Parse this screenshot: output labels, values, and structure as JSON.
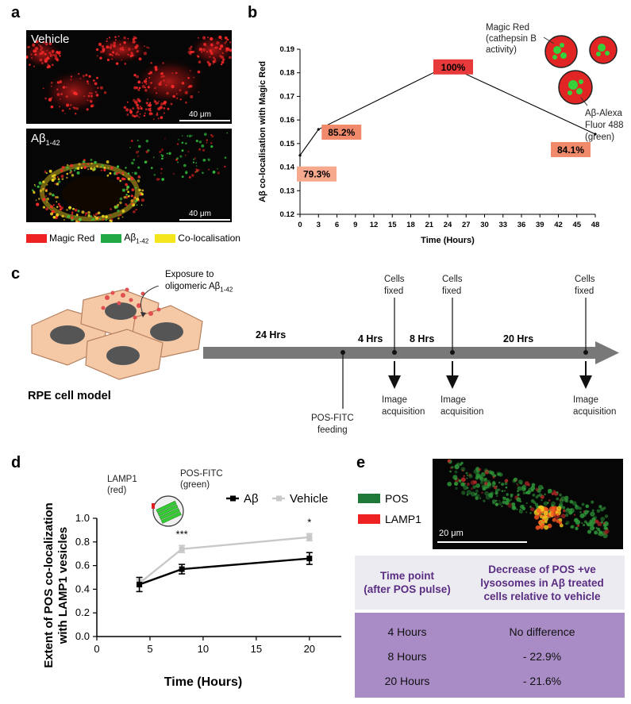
{
  "panel_a": {
    "label": "a",
    "top_image": {
      "label": "Vehicle",
      "scale": "40 μm"
    },
    "bottom_image": {
      "label_main": "Aβ",
      "label_sub": "1-42",
      "scale": "40 μm"
    },
    "legend": [
      {
        "label": "Magic Red",
        "sub": "",
        "color": "#ee2222"
      },
      {
        "label": "Aβ",
        "sub": "1-42",
        "color": "#22a845"
      },
      {
        "label": "Co-localisation",
        "sub": "",
        "color": "#f4e51c"
      }
    ]
  },
  "panel_b": {
    "label": "b",
    "chart_data": {
      "type": "line",
      "x": [
        0,
        3,
        24,
        48
      ],
      "y": [
        0.145,
        0.156,
        0.183,
        0.154
      ],
      "point_labels": [
        "79.3%",
        "85.2%",
        "100%",
        "84.1%"
      ],
      "xlabel": "Time (Hours)",
      "ylabel": "Aβ co-localisation with Magic Red",
      "xlim": [
        0,
        48
      ],
      "ylim": [
        0.12,
        0.19
      ],
      "xticks": [
        0,
        3,
        6,
        9,
        12,
        15,
        18,
        21,
        24,
        27,
        30,
        33,
        36,
        39,
        42,
        45,
        48
      ],
      "yticks": [
        0.12,
        0.13,
        0.14,
        0.15,
        0.16,
        0.17,
        0.18,
        0.19
      ]
    },
    "annotation_magic_red": [
      "Magic Red",
      "(cathepsin B",
      "activity)"
    ],
    "annotation_abeta": [
      "Aβ-Alexa",
      "Fluor 488",
      "(green)"
    ]
  },
  "panel_c": {
    "label": "c",
    "exposure": [
      "Exposure to",
      "oligomeric Aβ"
    ],
    "exposure_sub": "1-42",
    "model_label": "RPE cell model",
    "segments": [
      "24 Hrs",
      "4 Hrs",
      "8 Hrs",
      "20 Hrs"
    ],
    "pos_feeding": [
      "POS-FITC",
      "feeding"
    ],
    "fixed": [
      "Cells",
      "fixed"
    ],
    "acquisition": [
      "Image",
      "acquisition"
    ]
  },
  "panel_d": {
    "label": "d",
    "chart_data": {
      "type": "line",
      "x": [
        4,
        8,
        20
      ],
      "series": [
        {
          "name": "Aβ",
          "values": [
            0.44,
            0.57,
            0.66
          ],
          "errors": [
            0.06,
            0.04,
            0.05
          ],
          "color": "#000000"
        },
        {
          "name": "Vehicle",
          "values": [
            0.45,
            0.74,
            0.84
          ],
          "errors": [
            0.03,
            0.03,
            0.03
          ],
          "color": "#c8c8c8"
        }
      ],
      "significance": [
        "***",
        "*"
      ],
      "xlabel": "Time (Hours)",
      "ylabel": [
        "Extent of POS co-localization",
        "with LAMP1 vesicles"
      ],
      "xlim": [
        0,
        23
      ],
      "ylim": [
        0.0,
        1.0
      ],
      "xticks": [
        0,
        5,
        10,
        15,
        20
      ],
      "yticks": [
        0.0,
        0.2,
        0.4,
        0.6,
        0.8,
        1.0
      ],
      "legend_position": "top-right"
    },
    "lamp1_label": [
      "LAMP1",
      "(red)"
    ],
    "posfitc_label": [
      "POS-FITC",
      "(green)"
    ]
  },
  "panel_e": {
    "label": "e",
    "legend": [
      {
        "label": "POS",
        "color": "#1f7a3a"
      },
      {
        "label": "LAMP1",
        "color": "#ee2222"
      }
    ],
    "scale": "20 μm",
    "table": {
      "header": [
        [
          "Time point",
          "(after POS pulse)"
        ],
        [
          "Decrease of POS +ve",
          "lysosomes in Aβ treated",
          "cells relative to vehicle"
        ]
      ],
      "rows": [
        [
          "4 Hours",
          "No difference"
        ],
        [
          "8 Hours",
          "- 22.9%"
        ],
        [
          "20 Hours",
          "- 21.6%"
        ]
      ]
    }
  }
}
